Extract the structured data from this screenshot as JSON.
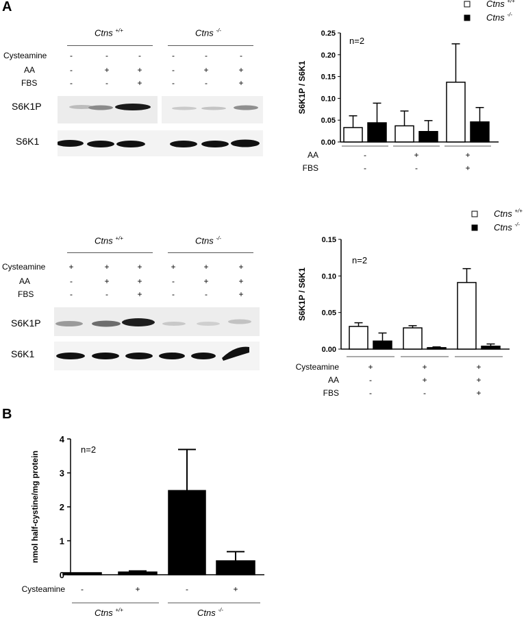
{
  "panels": {
    "A": "A",
    "B": "B"
  },
  "genotypes": {
    "wt": "Ctns",
    "wt_sup": "+/+",
    "ko": "Ctns",
    "ko_sup": "-/-"
  },
  "conditions": {
    "cysteamine": "Cysteamine",
    "aa": "AA",
    "fbs": "FBS"
  },
  "blot_labels": {
    "phospho": "S6K1P",
    "total": "S6K1"
  },
  "blot1_signs": {
    "cysteamine": [
      "-",
      "-",
      "-",
      "-",
      "-",
      "-"
    ],
    "aa": [
      "-",
      "+",
      "+",
      "-",
      "+",
      "+"
    ],
    "fbs": [
      "-",
      "-",
      "+",
      "-",
      "-",
      "+"
    ]
  },
  "blot2_signs": {
    "cysteamine": [
      "+",
      "+",
      "+",
      "+",
      "+",
      "+"
    ],
    "aa": [
      "-",
      "+",
      "+",
      "-",
      "+",
      "+"
    ],
    "fbs": [
      "-",
      "-",
      "+",
      "-",
      "-",
      "+"
    ]
  },
  "colors": {
    "wt_fill": "#ffffff",
    "ko_fill": "#000000",
    "axis": "#000000"
  },
  "chart_data": [
    {
      "type": "bar",
      "id": "A1",
      "ylabel": "S6K1P / S6K1",
      "ylim": [
        0,
        0.25
      ],
      "yticks": [
        "0.00",
        "0.05",
        "0.10",
        "0.15",
        "0.20",
        "0.25"
      ],
      "annotation": "n=2",
      "legend": {
        "placement": "top-right",
        "wt": "Ctns",
        "wt_sup": "+/+",
        "ko": "Ctns",
        "ko_sup": "-/-"
      },
      "row_labels": [
        "AA",
        "FBS"
      ],
      "groups": [
        {
          "AA": "-",
          "FBS": "-"
        },
        {
          "AA": "+",
          "FBS": "-"
        },
        {
          "AA": "+",
          "FBS": "+"
        }
      ],
      "series": [
        {
          "values": [
            0.033,
            0.037,
            0.137
          ],
          "errors": [
            0.027,
            0.034,
            0.088
          ]
        },
        {
          "values": [
            0.044,
            0.024,
            0.046
          ],
          "errors": [
            0.045,
            0.025,
            0.033
          ]
        }
      ]
    },
    {
      "type": "bar",
      "id": "A2",
      "ylabel": "S6K1P / S6K1",
      "ylim": [
        0,
        0.15
      ],
      "yticks": [
        "0.00",
        "0.05",
        "0.10",
        "0.15"
      ],
      "annotation": "n=2",
      "legend": {
        "placement": "top-right",
        "wt": "Ctns",
        "wt_sup": "+/+",
        "ko": "Ctns",
        "ko_sup": "-/-"
      },
      "row_labels": [
        "Cysteamine",
        "AA",
        "FBS"
      ],
      "groups": [
        {
          "Cysteamine": "+",
          "AA": "-",
          "FBS": "-"
        },
        {
          "Cysteamine": "+",
          "AA": "+",
          "FBS": "-"
        },
        {
          "Cysteamine": "+",
          "AA": "+",
          "FBS": "+"
        }
      ],
      "series": [
        {
          "values": [
            0.031,
            0.029,
            0.091
          ],
          "errors": [
            0.005,
            0.003,
            0.019
          ]
        },
        {
          "values": [
            0.011,
            0.002,
            0.004
          ],
          "errors": [
            0.011,
            0.001,
            0.003
          ]
        }
      ]
    },
    {
      "type": "bar",
      "id": "B",
      "ylabel": "nmol half-cystine/mg protein",
      "ylim": [
        0,
        4
      ],
      "yticks": [
        "0",
        "1",
        "2",
        "3",
        "4"
      ],
      "annotation": "n=2",
      "row_label": "Cysteamine",
      "categories": [
        "-",
        "+",
        "-",
        "+"
      ],
      "genotype_groups": [
        {
          "label": "Ctns",
          "sup": "+/+"
        },
        {
          "label": "Ctns",
          "sup": "-/-"
        }
      ],
      "values": [
        0.06,
        0.08,
        2.48,
        0.41
      ],
      "errors": [
        0.0,
        0.03,
        1.21,
        0.27
      ],
      "fills": [
        "#000000",
        "#000000",
        "#000000",
        "#000000"
      ]
    }
  ]
}
